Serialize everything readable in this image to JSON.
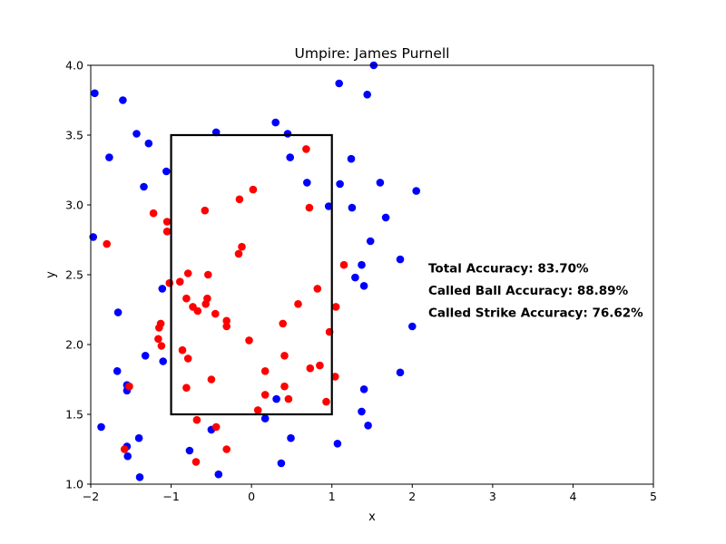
{
  "chart_data": {
    "type": "scatter",
    "title": "Umpire: James Purnell",
    "xlabel": "x",
    "ylabel": "y",
    "xlim": [
      -2,
      5
    ],
    "ylim": [
      1.0,
      4.0
    ],
    "xticks": [
      -2,
      -1,
      0,
      1,
      2,
      3,
      4,
      5
    ],
    "yticks": [
      1.0,
      1.5,
      2.0,
      2.5,
      3.0,
      3.5,
      4.0
    ],
    "xtick_labels": [
      "−2",
      "−1",
      "0",
      "1",
      "2",
      "3",
      "4",
      "5"
    ],
    "ytick_labels": [
      "1.0",
      "1.5",
      "2.0",
      "2.5",
      "3.0",
      "3.5",
      "4.0"
    ],
    "grid": false,
    "strike_zone": {
      "x0": -1,
      "x1": 1,
      "y0": 1.5,
      "y1": 3.5,
      "color": "#000000"
    },
    "annotations": [
      {
        "text": "Total Accuracy: 83.70%",
        "x": 2.2,
        "y": 2.55
      },
      {
        "text": "Called Ball Accuracy: 88.89%",
        "x": 2.2,
        "y": 2.39
      },
      {
        "text": "Called Strike Accuracy: 76.62%",
        "x": 2.2,
        "y": 2.23
      }
    ],
    "series": [
      {
        "color": "#0000ff",
        "points": [
          [
            -1.95,
            3.8
          ],
          [
            -1.6,
            3.75
          ],
          [
            -1.43,
            3.51
          ],
          [
            -1.28,
            3.44
          ],
          [
            -1.77,
            3.34
          ],
          [
            -1.34,
            3.13
          ],
          [
            -1.06,
            3.24
          ],
          [
            -0.44,
            3.52
          ],
          [
            -1.97,
            2.77
          ],
          [
            -1.66,
            2.23
          ],
          [
            -1.11,
            2.4
          ],
          [
            -1.32,
            1.92
          ],
          [
            -1.1,
            1.88
          ],
          [
            -1.67,
            1.81
          ],
          [
            -1.55,
            1.71
          ],
          [
            -1.55,
            1.67
          ],
          [
            -1.87,
            1.41
          ],
          [
            -1.4,
            1.33
          ],
          [
            -1.55,
            1.27
          ],
          [
            -1.54,
            1.2
          ],
          [
            -1.39,
            1.05
          ],
          [
            -0.77,
            1.24
          ],
          [
            -0.5,
            1.39
          ],
          [
            -0.41,
            1.07
          ],
          [
            0.3,
            3.59
          ],
          [
            0.45,
            3.51
          ],
          [
            0.48,
            3.34
          ],
          [
            0.69,
            3.16
          ],
          [
            0.96,
            2.99
          ],
          [
            1.09,
            3.87
          ],
          [
            1.44,
            3.79
          ],
          [
            1.52,
            4.0
          ],
          [
            1.24,
            3.33
          ],
          [
            1.1,
            3.15
          ],
          [
            1.25,
            2.98
          ],
          [
            1.6,
            3.16
          ],
          [
            1.67,
            2.91
          ],
          [
            2.05,
            3.1
          ],
          [
            1.48,
            2.74
          ],
          [
            1.85,
            2.61
          ],
          [
            1.37,
            2.57
          ],
          [
            1.29,
            2.48
          ],
          [
            1.4,
            2.42
          ],
          [
            2.0,
            2.13
          ],
          [
            1.85,
            1.8
          ],
          [
            1.4,
            1.68
          ],
          [
            1.37,
            1.52
          ],
          [
            1.45,
            1.42
          ],
          [
            1.07,
            1.29
          ],
          [
            0.31,
            1.61
          ],
          [
            0.17,
            1.47
          ],
          [
            0.49,
            1.33
          ],
          [
            0.37,
            1.15
          ]
        ]
      },
      {
        "color": "#ff0000",
        "points": [
          [
            -1.8,
            2.72
          ],
          [
            -1.22,
            2.94
          ],
          [
            -1.05,
            2.88
          ],
          [
            -1.05,
            2.81
          ],
          [
            -0.58,
            2.96
          ],
          [
            0.02,
            3.11
          ],
          [
            -0.15,
            3.04
          ],
          [
            0.68,
            3.4
          ],
          [
            0.72,
            2.98
          ],
          [
            -0.12,
            2.7
          ],
          [
            -0.16,
            2.65
          ],
          [
            -1.02,
            2.44
          ],
          [
            -0.89,
            2.45
          ],
          [
            -0.79,
            2.51
          ],
          [
            -0.54,
            2.5
          ],
          [
            -0.55,
            2.33
          ],
          [
            -0.57,
            2.29
          ],
          [
            -0.81,
            2.33
          ],
          [
            -0.73,
            2.27
          ],
          [
            -0.67,
            2.24
          ],
          [
            -0.45,
            2.22
          ],
          [
            -0.31,
            2.17
          ],
          [
            -0.31,
            2.13
          ],
          [
            -1.13,
            2.15
          ],
          [
            -1.15,
            2.12
          ],
          [
            -1.16,
            2.04
          ],
          [
            -1.12,
            1.99
          ],
          [
            -0.86,
            1.96
          ],
          [
            -0.79,
            1.9
          ],
          [
            -0.03,
            2.03
          ],
          [
            -0.5,
            1.75
          ],
          [
            -0.81,
            1.69
          ],
          [
            -1.52,
            1.7
          ],
          [
            -1.58,
            1.25
          ],
          [
            -0.68,
            1.46
          ],
          [
            -0.44,
            1.41
          ],
          [
            -0.69,
            1.16
          ],
          [
            -0.31,
            1.25
          ],
          [
            0.08,
            1.53
          ],
          [
            0.17,
            1.64
          ],
          [
            0.17,
            1.81
          ],
          [
            0.39,
            2.15
          ],
          [
            0.41,
            1.92
          ],
          [
            0.41,
            1.7
          ],
          [
            0.46,
            1.61
          ],
          [
            0.58,
            2.29
          ],
          [
            0.82,
            2.4
          ],
          [
            0.73,
            1.83
          ],
          [
            0.85,
            1.85
          ],
          [
            0.97,
            2.09
          ],
          [
            1.05,
            2.27
          ],
          [
            1.15,
            2.57
          ],
          [
            1.04,
            1.77
          ],
          [
            0.93,
            1.59
          ]
        ]
      }
    ]
  }
}
